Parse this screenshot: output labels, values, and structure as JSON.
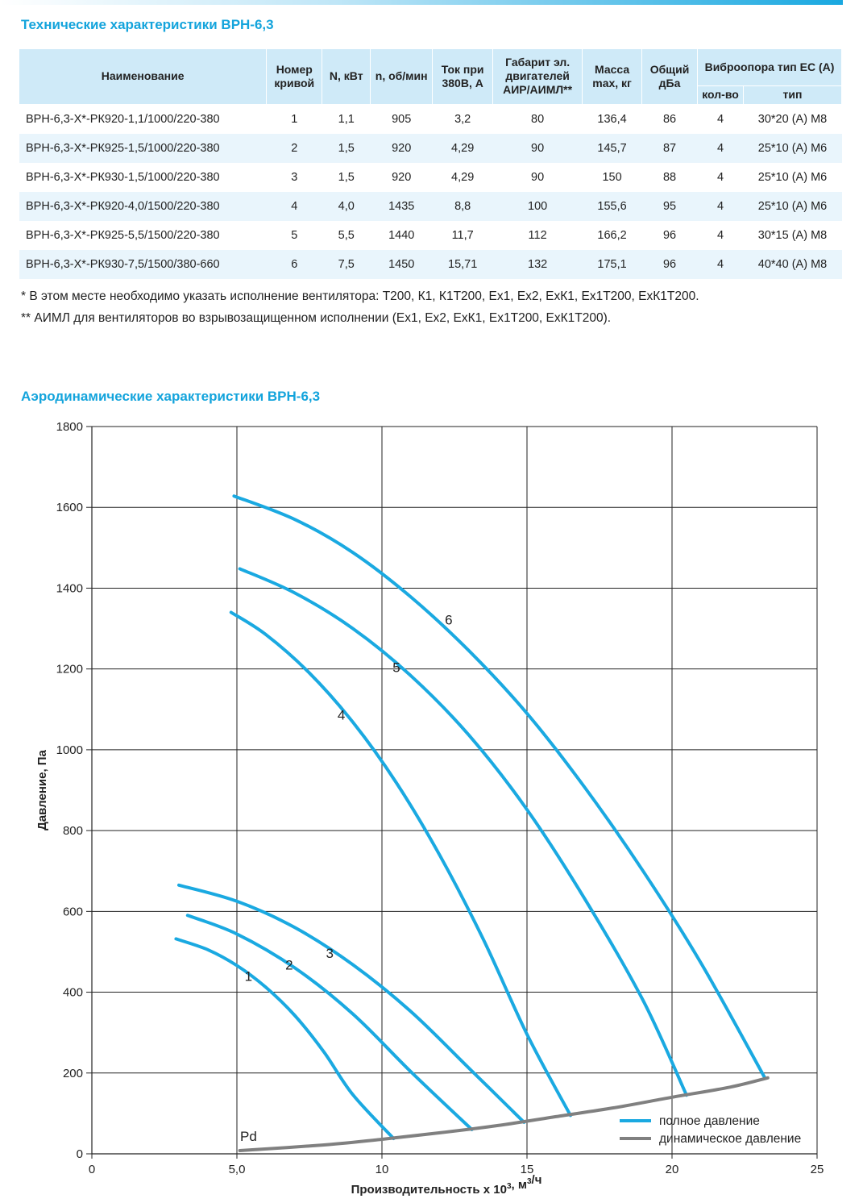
{
  "spec_title": "Технические характеристики ВРН-6,3",
  "aero_title": "Аэродинамические характеристики ВРН-6,3",
  "table": {
    "headers": {
      "name": "Наименование",
      "curve": "Номер кривой",
      "power": "N, кВт",
      "rpm": "n, об/мин",
      "current": "Ток при 380В, А",
      "motor": "Габарит эл. двигателей АИР/АИМЛ**",
      "mass": "Масса max, кг",
      "noise": "Общий дБа",
      "mount": "Виброопора тип ЕС (А)",
      "mount_count": "кол-во",
      "mount_type": "тип"
    },
    "rows": [
      {
        "name": "ВРН-6,3-Х*-РК920-1,1/1000/220-380",
        "curve": "1",
        "power": "1,1",
        "rpm": "905",
        "current": "3,2",
        "motor": "80",
        "mass": "136,4",
        "noise": "86",
        "count": "4",
        "type": "30*20 (А) М8"
      },
      {
        "name": "ВРН-6,3-Х*-РК925-1,5/1000/220-380",
        "curve": "2",
        "power": "1,5",
        "rpm": "920",
        "current": "4,29",
        "motor": "90",
        "mass": "145,7",
        "noise": "87",
        "count": "4",
        "type": "25*10 (А) М6"
      },
      {
        "name": "ВРН-6,3-Х*-РК930-1,5/1000/220-380",
        "curve": "3",
        "power": "1,5",
        "rpm": "920",
        "current": "4,29",
        "motor": "90",
        "mass": "150",
        "noise": "88",
        "count": "4",
        "type": "25*10 (А) М6"
      },
      {
        "name": "ВРН-6,3-Х*-РК920-4,0/1500/220-380",
        "curve": "4",
        "power": "4,0",
        "rpm": "1435",
        "current": "8,8",
        "motor": "100",
        "mass": "155,6",
        "noise": "95",
        "count": "4",
        "type": "25*10 (А) М6"
      },
      {
        "name": "ВРН-6,3-Х*-РК925-5,5/1500/220-380",
        "curve": "5",
        "power": "5,5",
        "rpm": "1440",
        "current": "11,7",
        "motor": "112",
        "mass": "166,2",
        "noise": "96",
        "count": "4",
        "type": "30*15 (А) М8"
      },
      {
        "name": "ВРН-6,3-Х*-РК930-7,5/1500/380-660",
        "curve": "6",
        "power": "7,5",
        "rpm": "1450",
        "current": "15,71",
        "motor": "132",
        "mass": "175,1",
        "noise": "96",
        "count": "4",
        "type": "40*40 (А) М8"
      }
    ]
  },
  "notes": [
    "* В этом месте необходимо указать исполнение вентилятора: Т200, К1, К1Т200, Ех1, Ех2, ЕхК1, Ех1Т200, ЕхК1Т200.",
    "** АИМЛ для вентиляторов во взрывозащищенном исполнении (Ех1, Ех2, ЕхК1, Ех1Т200, ЕхК1Т200)."
  ],
  "colors": {
    "full_pressure": "#1aa9e1",
    "dynamic_pressure": "#808080",
    "title": "#14a4dc",
    "header_bg": "#cfeaf8",
    "row_alt": "#e9f5fc"
  },
  "chart_data": {
    "type": "line",
    "xlabel": "Производительность х 10³, м³/ч",
    "ylabel": "Давление, Па",
    "xlim": [
      0,
      25
    ],
    "ylim": [
      0,
      1800
    ],
    "x_ticks": [
      "0",
      "5,0",
      "10",
      "15",
      "20",
      "25"
    ],
    "x_tick_values": [
      0,
      5,
      10,
      15,
      20,
      25
    ],
    "y_ticks": [
      "0",
      "200",
      "400",
      "600",
      "800",
      "1000",
      "1200",
      "1400",
      "1600",
      "1800"
    ],
    "y_tick_values": [
      0,
      200,
      400,
      600,
      800,
      1000,
      1200,
      1400,
      1600,
      1800
    ],
    "grid": true,
    "legend_position": "bottom-right",
    "legend": [
      "полное давление",
      "динамическое давление"
    ],
    "series": [
      {
        "name": "1",
        "group": "full",
        "label_at": [
          5.4,
          428
        ],
        "points": [
          [
            2.9,
            532
          ],
          [
            4.0,
            505
          ],
          [
            5.0,
            466
          ],
          [
            6.0,
            412
          ],
          [
            7.0,
            342
          ],
          [
            8.0,
            252
          ],
          [
            9.0,
            146
          ],
          [
            10.4,
            38
          ]
        ]
      },
      {
        "name": "2",
        "group": "full",
        "label_at": [
          6.8,
          456
        ],
        "points": [
          [
            3.3,
            590
          ],
          [
            5.0,
            544
          ],
          [
            7.0,
            460
          ],
          [
            9.0,
            346
          ],
          [
            11.0,
            203
          ],
          [
            13.1,
            60
          ]
        ]
      },
      {
        "name": "3",
        "group": "full",
        "label_at": [
          8.2,
          485
        ],
        "points": [
          [
            3.0,
            665
          ],
          [
            5.0,
            625
          ],
          [
            7.0,
            560
          ],
          [
            9.0,
            468
          ],
          [
            11.0,
            352
          ],
          [
            13.0,
            212
          ],
          [
            14.9,
            78
          ]
        ]
      },
      {
        "name": "4",
        "group": "full",
        "label_at": [
          8.6,
          1075
        ],
        "points": [
          [
            4.8,
            1340
          ],
          [
            6.0,
            1285
          ],
          [
            7.5,
            1190
          ],
          [
            9.0,
            1068
          ],
          [
            10.5,
            918
          ],
          [
            12.0,
            738
          ],
          [
            13.5,
            530
          ],
          [
            15.0,
            296
          ],
          [
            16.5,
            95
          ]
        ]
      },
      {
        "name": "5",
        "group": "full",
        "label_at": [
          10.5,
          1192
        ],
        "points": [
          [
            5.1,
            1448
          ],
          [
            7.0,
            1388
          ],
          [
            9.0,
            1300
          ],
          [
            11.0,
            1183
          ],
          [
            13.0,
            1036
          ],
          [
            15.0,
            852
          ],
          [
            17.0,
            630
          ],
          [
            19.0,
            380
          ],
          [
            20.5,
            145
          ]
        ]
      },
      {
        "name": "6",
        "group": "full",
        "label_at": [
          12.3,
          1310
        ],
        "points": [
          [
            4.9,
            1628
          ],
          [
            7.0,
            1570
          ],
          [
            9.0,
            1488
          ],
          [
            11.0,
            1378
          ],
          [
            13.0,
            1245
          ],
          [
            15.0,
            1090
          ],
          [
            17.0,
            906
          ],
          [
            19.0,
            700
          ],
          [
            21.0,
            472
          ],
          [
            23.2,
            188
          ]
        ]
      },
      {
        "name": "Pd",
        "group": "dynamic",
        "label_at": [
          5.4,
          32
        ],
        "points": [
          [
            5.1,
            8
          ],
          [
            8.0,
            22
          ],
          [
            10.0,
            36
          ],
          [
            12.0,
            52
          ],
          [
            14.0,
            70
          ],
          [
            16.0,
            92
          ],
          [
            18.0,
            114
          ],
          [
            20.0,
            140
          ],
          [
            22.0,
            165
          ],
          [
            23.3,
            188
          ]
        ]
      }
    ]
  }
}
